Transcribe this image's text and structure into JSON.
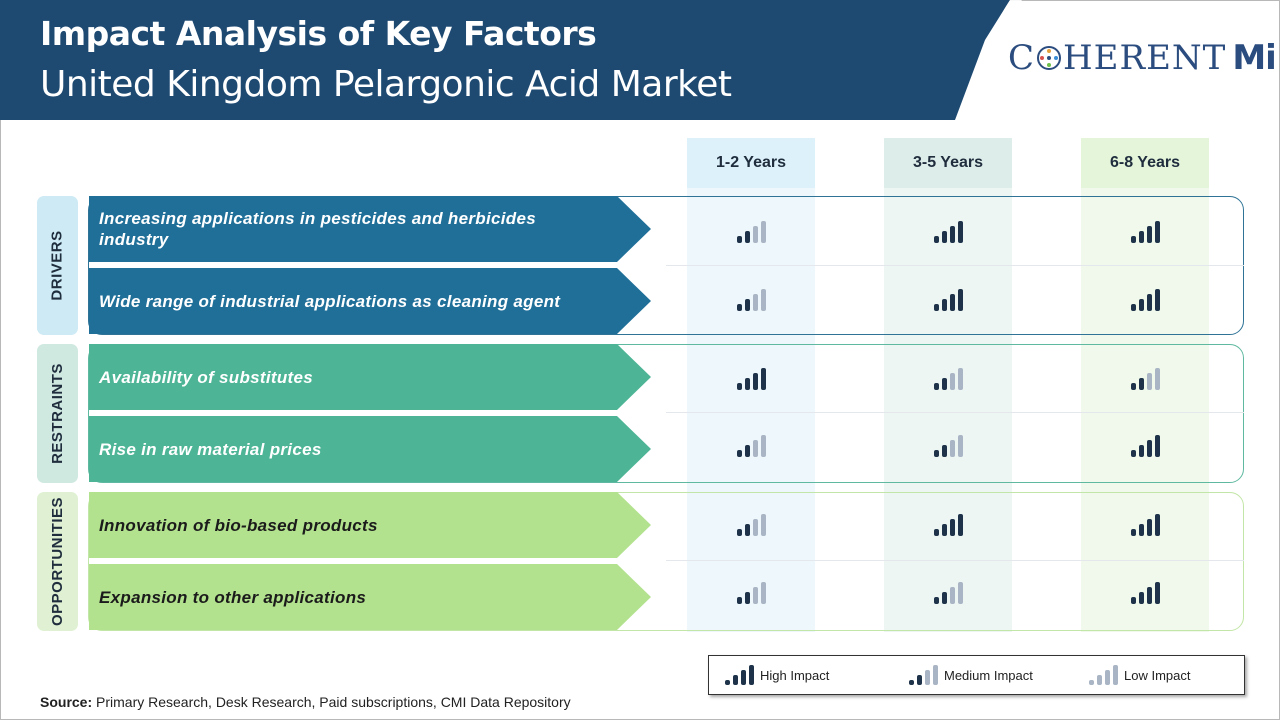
{
  "header": {
    "title": "Impact Analysis of Key Factors",
    "subtitle": "United Kingdom Pelargonic Acid Market",
    "logo_text": "COHERENT MI"
  },
  "columns": [
    "1-2 Years",
    "3-5 Years",
    "6-8 Years"
  ],
  "groups": [
    {
      "label": "DRIVERS",
      "factors": [
        {
          "text": "Increasing applications in pesticides and herbicides industry",
          "impact": [
            "medium",
            "high",
            "high"
          ]
        },
        {
          "text": "Wide range of industrial applications as cleaning agent",
          "impact": [
            "medium",
            "high",
            "high"
          ]
        }
      ]
    },
    {
      "label": "RESTRAINTS",
      "factors": [
        {
          "text": "Availability of substitutes",
          "impact": [
            "high",
            "medium",
            "medium"
          ]
        },
        {
          "text": "Rise in raw material prices",
          "impact": [
            "medium",
            "medium",
            "high"
          ]
        }
      ]
    },
    {
      "label": "OPPORTUNITIES",
      "factors": [
        {
          "text": "Innovation of bio-based products",
          "impact": [
            "medium",
            "high",
            "high"
          ]
        },
        {
          "text": "Expansion to other applications",
          "impact": [
            "medium",
            "medium",
            "high"
          ]
        }
      ]
    }
  ],
  "legend": [
    {
      "level": "high",
      "label": "High Impact"
    },
    {
      "level": "medium",
      "label": "Medium Impact"
    },
    {
      "level": "low",
      "label": "Low Impact"
    }
  ],
  "source": {
    "label": "Source:",
    "text": "Primary Research, Desk Research, Paid subscriptions, CMI Data Repository"
  },
  "colors": {
    "header_navy": "#1e4a72",
    "drivers": "#1f6f99",
    "restraints": "#4db596",
    "opportunities": "#b3e28e",
    "bar_dark": "#1e3349",
    "bar_light": "#a9b5c4"
  }
}
